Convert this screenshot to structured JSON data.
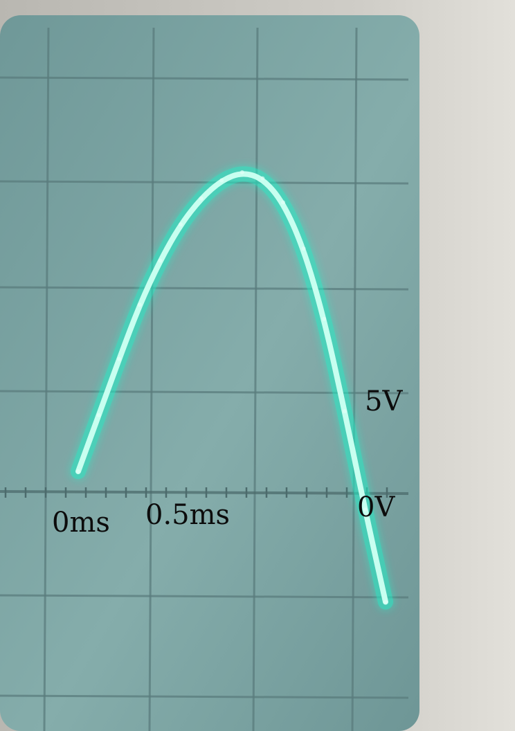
{
  "chart_data": {
    "type": "line",
    "title": "",
    "xlabel": "",
    "ylabel": "",
    "x_tick_labels": [
      {
        "value": 0,
        "text": "0ms"
      },
      {
        "value": 0.5,
        "text": "0.5ms"
      }
    ],
    "y_tick_labels": [
      {
        "value": 0,
        "text": "0V"
      },
      {
        "value": 5,
        "text": "5V"
      }
    ],
    "xlim": [
      -0.15,
      1.6
    ],
    "ylim": [
      -15,
      25
    ],
    "grid": true,
    "trace_color": "#22f0c8",
    "screen_color": "#7fa8a8",
    "series": [
      {
        "x": [
          0,
          0.1,
          0.2,
          0.3,
          0.4,
          0.5,
          0.6,
          0.7,
          0.8,
          0.9,
          1.0,
          1.1,
          1.2,
          1.3,
          1.4,
          1.5
        ],
        "y": [
          1.0,
          3.8,
          6.6,
          9.3,
          11.5,
          13.3,
          14.6,
          15.5,
          15.9,
          15.6,
          14.4,
          12.1,
          8.6,
          4.0,
          -0.9,
          -5.5
        ]
      }
    ]
  }
}
